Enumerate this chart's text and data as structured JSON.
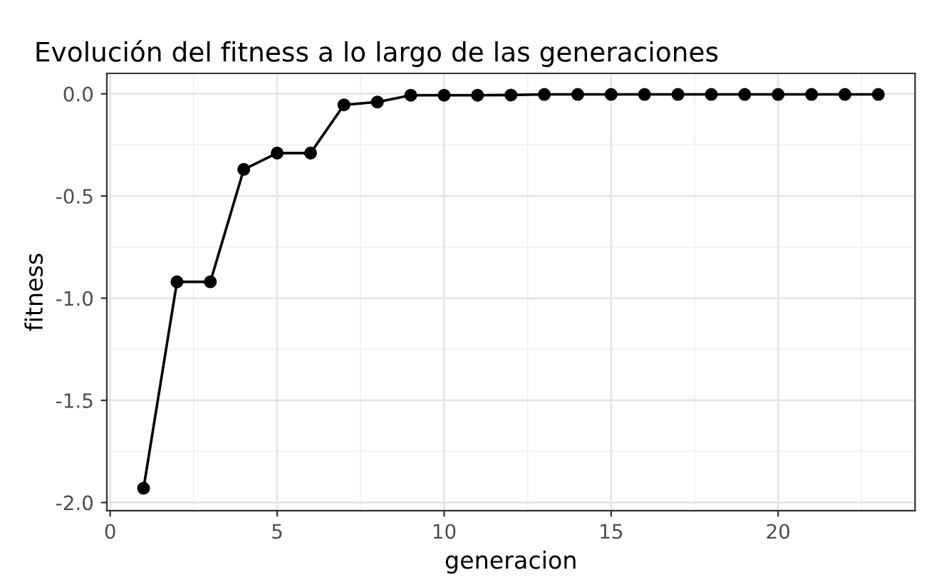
{
  "chart_data": {
    "type": "line",
    "title": "Evolución del fitness a lo largo de las generaciones",
    "xlabel": "generacion",
    "ylabel": "fitness",
    "x": [
      1,
      2,
      3,
      4,
      5,
      6,
      7,
      8,
      9,
      10,
      11,
      12,
      13,
      14,
      15,
      16,
      17,
      18,
      19,
      20,
      21,
      22,
      23
    ],
    "series": [
      {
        "color": "#000000",
        "values": [
          -1.93,
          -0.92,
          -0.92,
          -0.37,
          -0.29,
          -0.29,
          -0.054,
          -0.04,
          -0.007,
          -0.007,
          -0.007,
          -0.006,
          -0.003,
          -0.003,
          -0.003,
          -0.003,
          -0.003,
          -0.003,
          -0.003,
          -0.003,
          -0.003,
          -0.003,
          -0.003
        ]
      }
    ],
    "xlim": [
      -0.1,
      24.1
    ],
    "xticks": [
      0,
      5,
      10,
      15,
      20
    ],
    "ylim": [
      -2.04,
      0.1
    ],
    "yticks": [
      {
        "value": -2,
        "label": "-2.0"
      },
      {
        "value": -1.5,
        "label": "-1.5"
      },
      {
        "value": -1,
        "label": "-1.0"
      },
      {
        "value": -0.5,
        "label": "-0.5"
      },
      {
        "value": 0,
        "label": "0.0"
      }
    ],
    "grid": true,
    "marker": "circle",
    "line_style": "solid"
  }
}
